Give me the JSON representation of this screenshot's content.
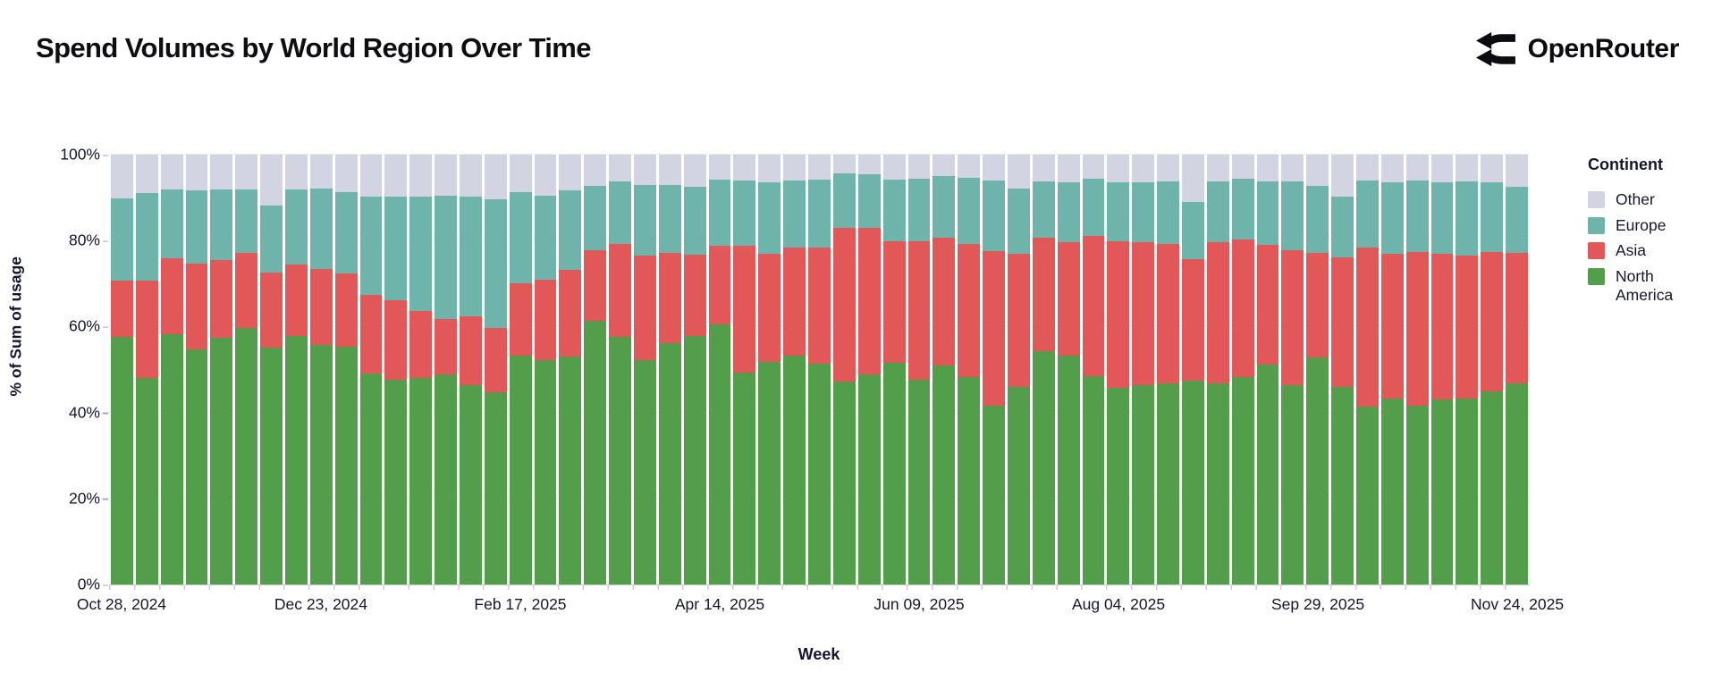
{
  "title": "Spend Volumes by World Region Over Time",
  "brand": {
    "name": "OpenRouter"
  },
  "chart_data": {
    "type": "bar",
    "stacked": true,
    "normalized_percent": true,
    "title": "Spend Volumes by World Region Over Time",
    "xlabel": "Week",
    "ylabel": "% of Sum of usage",
    "ylim": [
      0,
      100
    ],
    "grid": "horizontal",
    "y_ticks": [
      "0%",
      "20%",
      "40%",
      "60%",
      "80%",
      "100%"
    ],
    "x_tick_labels": [
      "Oct 28, 2024",
      "Dec 23, 2024",
      "Feb 17, 2025",
      "Apr 14, 2025",
      "Jun 09, 2025",
      "Aug 04, 2025",
      "Sep 29, 2025",
      "Nov 24, 2025"
    ],
    "x_tick_every_n_bars": 8,
    "legend": {
      "title": "Continent",
      "position": "right",
      "entries": [
        {
          "label": "Other",
          "color": "#d2d5e1"
        },
        {
          "label": "Europe",
          "color": "#6fb4ab"
        },
        {
          "label": "Asia",
          "color": "#e25757"
        },
        {
          "label": "North America",
          "color": "#539e4a"
        }
      ]
    },
    "categories": [
      "Oct 28, 2024",
      "Nov 04, 2024",
      "Nov 11, 2024",
      "Nov 18, 2024",
      "Nov 25, 2024",
      "Dec 02, 2024",
      "Dec 09, 2024",
      "Dec 16, 2024",
      "Dec 23, 2024",
      "Dec 30, 2024",
      "Jan 06, 2025",
      "Jan 13, 2025",
      "Jan 20, 2025",
      "Jan 27, 2025",
      "Feb 03, 2025",
      "Feb 10, 2025",
      "Feb 17, 2025",
      "Feb 24, 2025",
      "Mar 03, 2025",
      "Mar 10, 2025",
      "Mar 17, 2025",
      "Mar 24, 2025",
      "Mar 31, 2025",
      "Apr 07, 2025",
      "Apr 14, 2025",
      "Apr 21, 2025",
      "Apr 28, 2025",
      "May 05, 2025",
      "May 12, 2025",
      "May 19, 2025",
      "May 26, 2025",
      "Jun 02, 2025",
      "Jun 09, 2025",
      "Jun 16, 2025",
      "Jun 23, 2025",
      "Jun 30, 2025",
      "Jul 07, 2025",
      "Jul 14, 2025",
      "Jul 21, 2025",
      "Jul 28, 2025",
      "Aug 04, 2025",
      "Aug 11, 2025",
      "Aug 18, 2025",
      "Aug 25, 2025",
      "Sep 01, 2025",
      "Sep 08, 2025",
      "Sep 15, 2025",
      "Sep 22, 2025",
      "Sep 29, 2025",
      "Oct 06, 2025",
      "Oct 13, 2025",
      "Oct 20, 2025",
      "Oct 27, 2025",
      "Nov 03, 2025",
      "Nov 10, 2025",
      "Nov 17, 2025",
      "Nov 24, 2025"
    ],
    "series": [
      {
        "name": "North America",
        "color": "#539e4a",
        "values": [
          57.6,
          48.1,
          58.3,
          54.7,
          57.3,
          59.6,
          55.0,
          57.7,
          55.7,
          55.4,
          49.1,
          47.6,
          48.0,
          48.8,
          46.4,
          44.6,
          53.3,
          52.2,
          53.1,
          61.4,
          57.5,
          52.1,
          56.1,
          57.7,
          60.6,
          49.3,
          51.8,
          53.3,
          51.4,
          47.3,
          48.8,
          51.6,
          47.6,
          50.9,
          48.3,
          41.6,
          46.0,
          54.2,
          53.3,
          48.5,
          45.7,
          46.4,
          46.7,
          47.4,
          46.7,
          48.3,
          51.1,
          46.4,
          52.8,
          45.9,
          41.4,
          43.3,
          41.6,
          43.0,
          43.3,
          45.0,
          46.7
        ]
      },
      {
        "name": "Asia",
        "color": "#e25757",
        "values": [
          13.1,
          22.6,
          17.5,
          20.0,
          18.2,
          17.6,
          17.6,
          16.7,
          17.6,
          16.9,
          18.3,
          18.6,
          15.7,
          12.9,
          16.0,
          15.1,
          16.8,
          18.7,
          20.1,
          16.3,
          21.7,
          24.4,
          21.1,
          19.0,
          18.1,
          29.4,
          25.1,
          25.0,
          27.0,
          35.6,
          34.1,
          28.3,
          32.2,
          29.7,
          30.9,
          36.0,
          30.9,
          26.4,
          26.4,
          32.5,
          34.2,
          33.3,
          32.5,
          28.2,
          33.0,
          32.0,
          27.9,
          31.3,
          24.4,
          30.1,
          36.9,
          33.7,
          35.8,
          33.9,
          33.2,
          32.4,
          30.5
        ]
      },
      {
        "name": "Europe",
        "color": "#6fb4ab",
        "values": [
          19.1,
          20.4,
          16.0,
          17.0,
          16.4,
          14.8,
          15.6,
          17.4,
          18.8,
          19.0,
          22.8,
          24.0,
          26.6,
          28.8,
          27.9,
          30.0,
          21.2,
          19.5,
          18.5,
          15.1,
          14.6,
          16.4,
          15.7,
          15.9,
          15.5,
          15.3,
          16.7,
          15.7,
          15.8,
          12.8,
          12.6,
          14.3,
          14.5,
          14.4,
          15.3,
          16.4,
          15.3,
          13.2,
          13.9,
          13.3,
          13.6,
          13.8,
          14.6,
          13.3,
          14.1,
          14.0,
          14.8,
          16.1,
          15.6,
          14.3,
          15.7,
          16.6,
          16.6,
          16.6,
          17.3,
          16.2,
          15.4
        ]
      },
      {
        "name": "Other",
        "color": "#d2d5e1",
        "values": [
          10.2,
          8.9,
          8.2,
          8.3,
          8.1,
          8.0,
          11.8,
          8.2,
          7.9,
          8.7,
          9.8,
          9.8,
          9.7,
          9.5,
          9.7,
          10.3,
          8.7,
          9.6,
          8.3,
          7.2,
          6.2,
          7.1,
          7.1,
          7.4,
          5.8,
          6.0,
          6.4,
          6.0,
          5.8,
          4.3,
          4.5,
          5.8,
          5.7,
          5.0,
          5.5,
          6.0,
          7.8,
          6.2,
          6.4,
          5.7,
          6.5,
          6.5,
          6.2,
          11.1,
          6.2,
          5.7,
          6.2,
          6.2,
          7.2,
          9.7,
          6.0,
          6.4,
          6.0,
          6.5,
          6.2,
          6.4,
          7.4
        ]
      }
    ]
  }
}
